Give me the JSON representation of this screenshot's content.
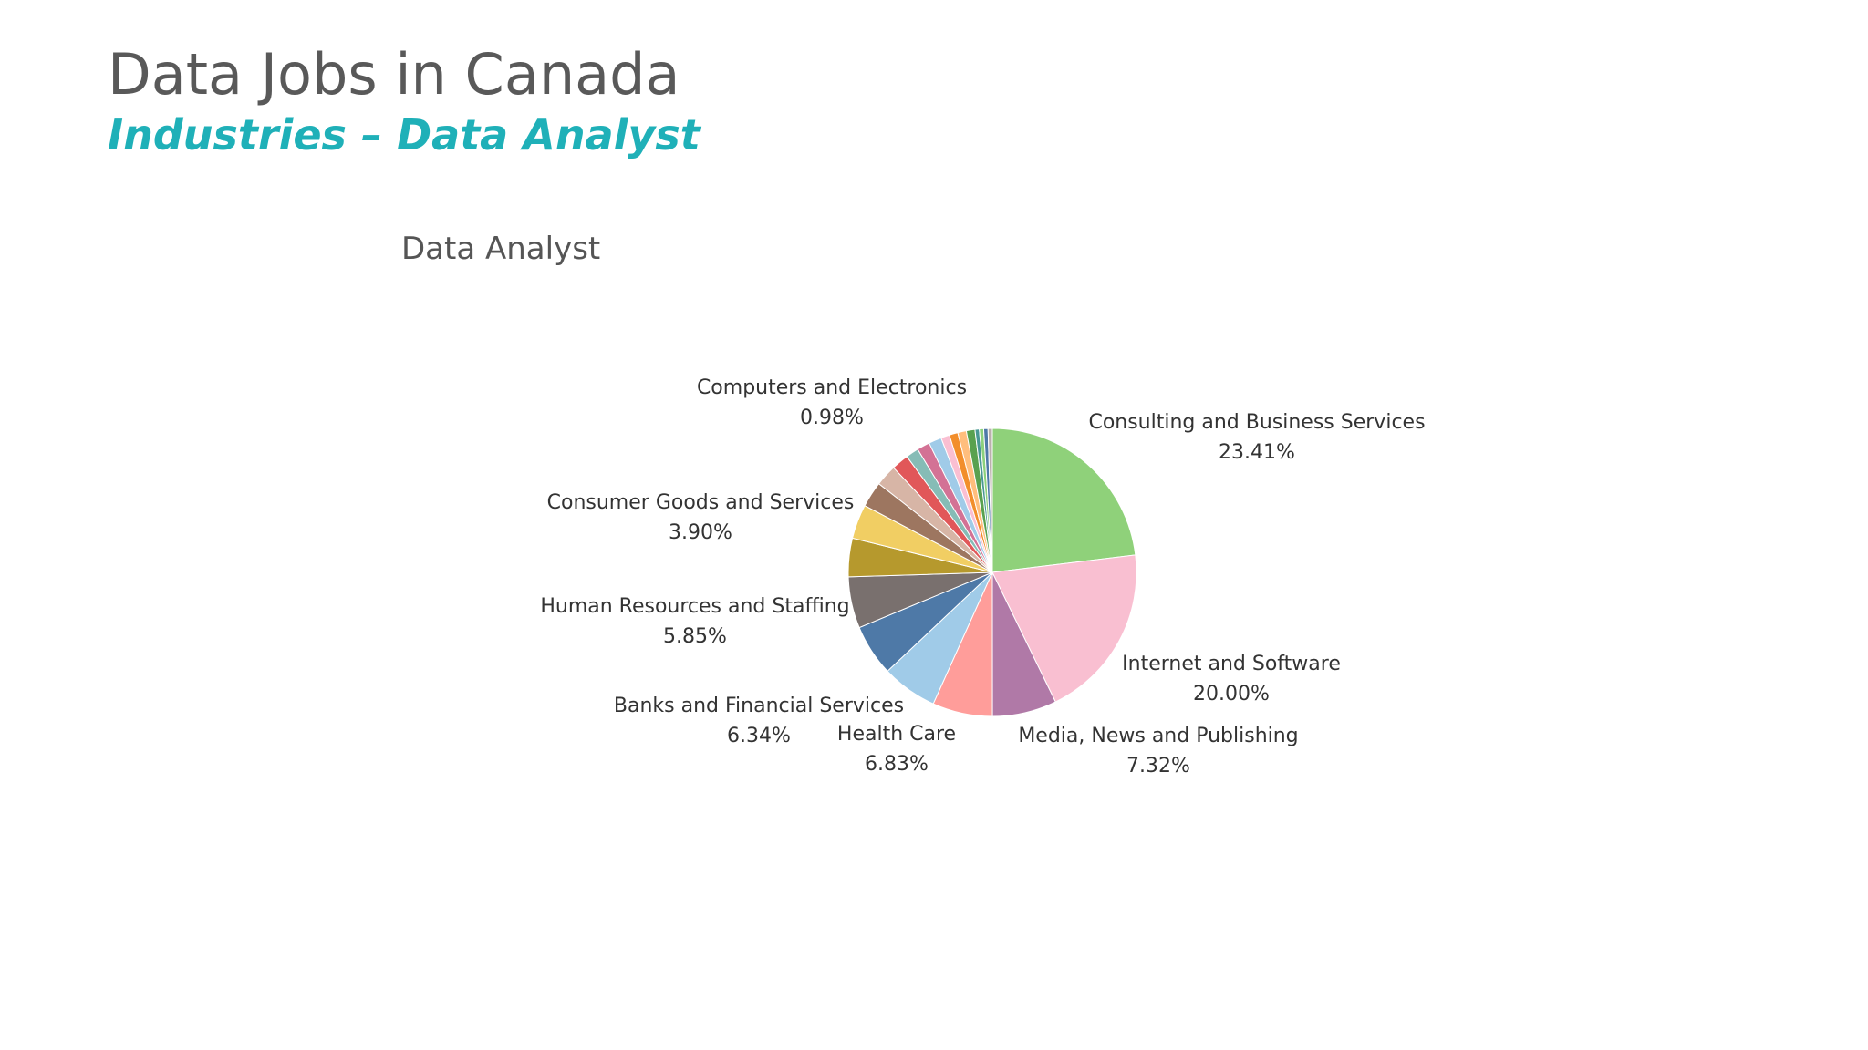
{
  "slide": {
    "title": "Data Jobs in Canada",
    "subtitle": "Industries – Data Analyst"
  },
  "chart_data": {
    "type": "pie",
    "title": "Data Analyst",
    "slices": [
      {
        "label": "Consulting and Business Services",
        "value": 23.41,
        "color": "#8fd17a",
        "show_label": true,
        "value_label": "23.41%"
      },
      {
        "label": "Internet and Software",
        "value": 20.0,
        "color": "#f9bfd1",
        "show_label": true,
        "value_label": "20.00%"
      },
      {
        "label": "Media, News and Publishing",
        "value": 7.32,
        "color": "#b079a7",
        "show_label": true,
        "value_label": "7.32%"
      },
      {
        "label": "Health Care",
        "value": 6.83,
        "color": "#ff9d9a",
        "show_label": true,
        "value_label": "6.83%"
      },
      {
        "label": "Banks and Financial Services",
        "value": 6.34,
        "color": "#a0cbe8",
        "show_label": true,
        "value_label": "6.34%"
      },
      {
        "label": "Human Resources and Staffing",
        "value": 5.85,
        "color": "#4e79a7",
        "show_label": true,
        "value_label": "5.85%"
      },
      {
        "label": "",
        "value": 5.85,
        "color": "#79706e",
        "show_label": false,
        "value_label": ""
      },
      {
        "label": "",
        "value": 4.39,
        "color": "#b6992d",
        "show_label": false,
        "value_label": ""
      },
      {
        "label": "Consumer Goods and Services",
        "value": 3.9,
        "color": "#f1ce63",
        "show_label": true,
        "value_label": "3.90%"
      },
      {
        "label": "",
        "value": 2.93,
        "color": "#9d7660",
        "show_label": false,
        "value_label": ""
      },
      {
        "label": "",
        "value": 2.44,
        "color": "#d7b5a6",
        "show_label": false,
        "value_label": ""
      },
      {
        "label": "",
        "value": 1.95,
        "color": "#e15759",
        "show_label": false,
        "value_label": ""
      },
      {
        "label": "",
        "value": 1.46,
        "color": "#86bcb6",
        "show_label": false,
        "value_label": ""
      },
      {
        "label": "",
        "value": 1.46,
        "color": "#d37295",
        "show_label": false,
        "value_label": ""
      },
      {
        "label": "",
        "value": 1.46,
        "color": "#a0cbe8",
        "show_label": false,
        "value_label": ""
      },
      {
        "label": "Computers and Electronics",
        "value": 0.98,
        "color": "#fabfd2",
        "show_label": true,
        "value_label": "0.98%"
      },
      {
        "label": "",
        "value": 0.98,
        "color": "#f28e2b",
        "show_label": false,
        "value_label": ""
      },
      {
        "label": "",
        "value": 0.98,
        "color": "#ffbe7d",
        "show_label": false,
        "value_label": ""
      },
      {
        "label": "",
        "value": 0.98,
        "color": "#59a14f",
        "show_label": false,
        "value_label": ""
      },
      {
        "label": "",
        "value": 0.49,
        "color": "#499894",
        "show_label": false,
        "value_label": ""
      },
      {
        "label": "",
        "value": 0.49,
        "color": "#8cd17d",
        "show_label": false,
        "value_label": ""
      },
      {
        "label": "",
        "value": 0.49,
        "color": "#4e79a7",
        "show_label": false,
        "value_label": ""
      },
      {
        "label": "",
        "value": 0.49,
        "color": "#bab0ac",
        "show_label": false,
        "value_label": ""
      }
    ],
    "legend": "none",
    "start_angle": "12 o'clock",
    "direction": "clockwise"
  }
}
